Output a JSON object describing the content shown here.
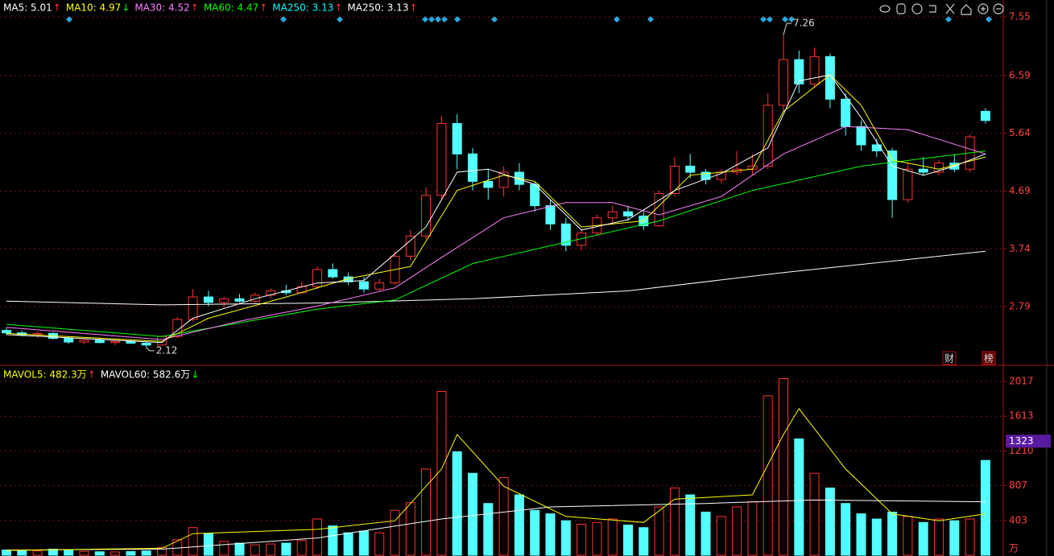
{
  "chart_data": [
    {
      "type": "candlestick",
      "legend": [
        {
          "text": "MA5: 5.01",
          "arrow": "↑",
          "color": "#ffffff"
        },
        {
          "text": "MA10: 4.97",
          "arrow": "↓",
          "color": "#ffff00"
        },
        {
          "text": "MA30: 4.52",
          "arrow": "↑",
          "color": "#ff80ff"
        },
        {
          "text": "MA60: 4.47",
          "arrow": "↑",
          "color": "#00ff00"
        },
        {
          "text": "MA250: 3.13",
          "arrow": "↑",
          "color": "#00ffff"
        },
        {
          "text": "MA250: 3.13",
          "arrow": "↑",
          "color": "#ffffff"
        }
      ],
      "up_color": "#ff3232",
      "down_color": "#54ffff",
      "open": [
        2.4,
        2.36,
        2.33,
        2.35,
        2.27,
        2.21,
        2.24,
        2.2,
        2.22,
        2.19,
        2.16,
        2.3,
        2.58,
        2.95,
        2.86,
        2.92,
        2.88,
        2.98,
        3.05,
        3.02,
        3.12,
        3.4,
        3.28,
        3.2,
        3.08,
        3.18,
        3.62,
        3.95,
        4.62,
        5.8,
        5.3,
        4.85,
        4.75,
        5.0,
        4.8,
        4.45,
        4.15,
        3.8,
        4.0,
        4.25,
        4.35,
        4.28,
        4.12,
        4.65,
        5.1,
        5.0,
        4.88,
        5.0,
        5.05,
        5.1,
        6.1,
        6.85,
        6.45,
        6.9,
        6.2,
        5.75,
        5.45,
        5.35,
        4.55,
        5.05,
        5.0,
        5.15,
        5.05,
        6.0
      ],
      "high": [
        2.45,
        2.4,
        2.38,
        2.37,
        2.3,
        2.26,
        2.27,
        2.24,
        2.25,
        2.21,
        2.32,
        2.62,
        3.08,
        3.05,
        2.95,
        3.0,
        3.02,
        3.1,
        3.15,
        3.2,
        3.45,
        3.5,
        3.35,
        3.28,
        3.25,
        3.7,
        4.05,
        4.75,
        5.93,
        5.95,
        5.4,
        5.05,
        5.1,
        5.15,
        4.85,
        4.55,
        4.25,
        4.05,
        4.3,
        4.45,
        4.45,
        4.35,
        4.7,
        5.25,
        5.3,
        5.05,
        5.05,
        5.35,
        5.3,
        6.3,
        7.26,
        7.0,
        7.05,
        6.95,
        6.3,
        5.85,
        5.55,
        5.4,
        5.15,
        5.25,
        5.2,
        5.3,
        5.62,
        6.05
      ],
      "low": [
        2.33,
        2.3,
        2.28,
        2.25,
        2.18,
        2.17,
        2.19,
        2.16,
        2.18,
        2.12,
        2.15,
        2.28,
        2.55,
        2.8,
        2.78,
        2.86,
        2.85,
        2.92,
        2.98,
        3.0,
        3.08,
        3.25,
        3.15,
        3.02,
        3.05,
        3.15,
        3.55,
        3.9,
        4.55,
        5.05,
        4.7,
        4.55,
        4.6,
        4.7,
        4.35,
        4.05,
        3.7,
        3.72,
        3.95,
        4.15,
        4.2,
        4.05,
        4.1,
        4.6,
        4.9,
        4.8,
        4.82,
        4.95,
        4.95,
        5.05,
        6.0,
        6.3,
        6.4,
        6.05,
        5.6,
        5.35,
        5.25,
        4.25,
        4.5,
        4.95,
        4.95,
        5.0,
        5.0,
        5.8
      ],
      "close": [
        2.36,
        2.33,
        2.35,
        2.27,
        2.21,
        2.24,
        2.2,
        2.22,
        2.19,
        2.16,
        2.3,
        2.58,
        2.95,
        2.86,
        2.92,
        2.88,
        2.98,
        3.05,
        3.02,
        3.12,
        3.4,
        3.28,
        3.2,
        3.08,
        3.18,
        3.62,
        3.95,
        4.62,
        5.8,
        5.3,
        4.85,
        4.75,
        5.0,
        4.8,
        4.45,
        4.15,
        3.8,
        4.0,
        4.25,
        4.35,
        4.28,
        4.12,
        4.65,
        5.1,
        5.0,
        4.88,
        5.0,
        5.05,
        5.1,
        6.1,
        6.85,
        6.45,
        6.9,
        6.2,
        5.75,
        5.45,
        5.35,
        4.55,
        5.05,
        5.0,
        5.15,
        5.05,
        5.58,
        5.85
      ],
      "series": [
        {
          "color": "#ffffff",
          "x": [
            0,
            10,
            20,
            30,
            40,
            50,
            63
          ],
          "values": [
            2.88,
            2.82,
            2.85,
            2.92,
            3.05,
            3.35,
            3.7
          ]
        },
        {
          "color": "#00ff00",
          "x": [
            0,
            10,
            20,
            25,
            30,
            36,
            42,
            48,
            55,
            63
          ],
          "values": [
            2.5,
            2.3,
            2.75,
            2.9,
            3.5,
            3.85,
            4.2,
            4.7,
            5.1,
            5.35
          ]
        },
        {
          "color": "#ff80ff",
          "x": [
            0,
            10,
            15,
            20,
            25,
            28,
            32,
            36,
            39,
            42,
            46,
            50,
            54,
            58,
            63
          ],
          "values": [
            2.45,
            2.25,
            2.55,
            2.8,
            3.1,
            3.6,
            4.25,
            4.5,
            4.5,
            4.3,
            4.6,
            5.3,
            5.75,
            5.7,
            5.3
          ]
        },
        {
          "color": "#ffff00",
          "x": [
            0,
            10,
            13,
            18,
            22,
            26,
            29,
            32,
            34,
            37,
            41,
            44,
            48,
            50,
            53,
            55,
            57,
            60,
            63
          ],
          "values": [
            2.35,
            2.22,
            2.6,
            2.95,
            3.25,
            3.45,
            4.7,
            4.95,
            4.85,
            4.1,
            4.2,
            4.95,
            5.05,
            6.0,
            6.6,
            6.1,
            5.2,
            5.05,
            5.25
          ]
        },
        {
          "color": "#ffffff",
          "x": [
            0,
            10,
            12,
            16,
            20,
            23,
            27,
            29,
            31,
            34,
            37,
            40,
            43,
            46,
            49,
            51,
            53,
            55,
            57,
            59,
            61,
            63
          ],
          "values": [
            2.33,
            2.2,
            2.6,
            2.92,
            3.18,
            3.22,
            4.1,
            5.0,
            5.05,
            4.8,
            4.05,
            4.22,
            4.7,
            4.98,
            5.4,
            6.5,
            6.6,
            5.9,
            5.1,
            4.95,
            5.1,
            5.3
          ]
        }
      ],
      "annotations": [
        {
          "label": "7.26",
          "x": 50,
          "y": 7.26
        },
        {
          "label": "2.12",
          "x": 9,
          "y": 2.12
        }
      ],
      "buttons": [
        "财",
        "榜"
      ],
      "ylim": [
        1.84,
        7.83
      ],
      "yticks": [
        2.79,
        3.74,
        4.69,
        5.64,
        6.59,
        7.55
      ],
      "grid": true
    },
    {
      "type": "bar",
      "legend": [
        {
          "text": "MAVOL5: 482.3万",
          "arrow": "↑",
          "color": "#ffff00"
        },
        {
          "text": "MAVOL60: 582.6万",
          "arrow": "↓",
          "color": "#ffffff"
        }
      ],
      "values": [
        60,
        55,
        50,
        70,
        65,
        45,
        40,
        38,
        42,
        50,
        90,
        180,
        320,
        250,
        160,
        140,
        120,
        130,
        140,
        170,
        420,
        340,
        260,
        280,
        260,
        520,
        610,
        1000,
        1900,
        1200,
        950,
        600,
        900,
        700,
        520,
        480,
        400,
        360,
        380,
        420,
        350,
        320,
        560,
        780,
        700,
        500,
        450,
        560,
        620,
        1850,
        2050,
        1350,
        950,
        780,
        600,
        480,
        420,
        500,
        450,
        380,
        420,
        400,
        420,
        1100
      ],
      "series": [
        {
          "color": "#ffffff",
          "x": [
            0,
            10,
            20,
            28,
            35,
            45,
            52,
            63
          ],
          "values": [
            60,
            70,
            200,
            420,
            560,
            600,
            640,
            620
          ]
        },
        {
          "color": "#ffff00",
          "x": [
            0,
            10,
            12,
            20,
            25,
            28,
            29,
            32,
            36,
            41,
            43,
            48,
            50,
            51,
            54,
            57,
            60,
            63
          ],
          "values": [
            55,
            80,
            250,
            300,
            400,
            1000,
            1400,
            800,
            450,
            380,
            650,
            700,
            1400,
            1700,
            1000,
            480,
            400,
            480
          ]
        }
      ],
      "current": 1323,
      "unit": "万",
      "ylim": [
        0,
        2194
      ],
      "yticks": [
        403,
        807,
        1210,
        1613,
        2017
      ],
      "grid": true
    }
  ]
}
